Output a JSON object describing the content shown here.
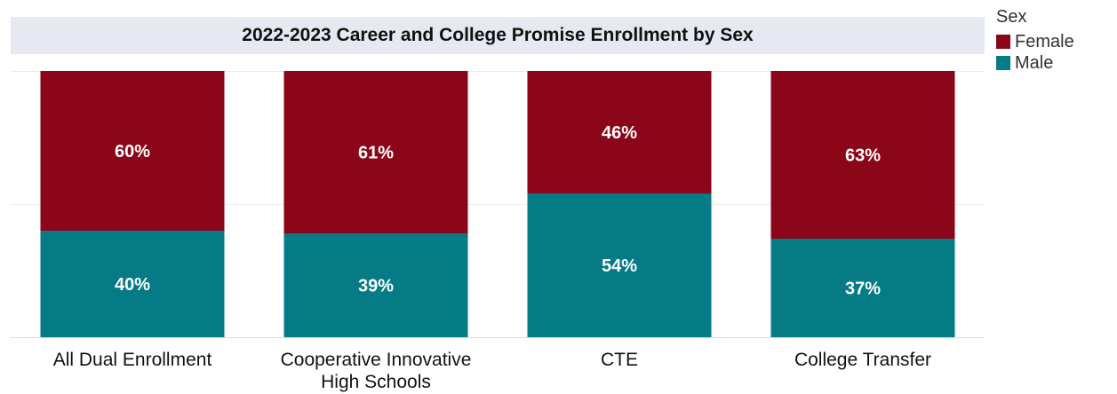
{
  "chart_data": {
    "type": "bar",
    "stacked": true,
    "title": "2022-2023 Career and College Promise Enrollment by Sex",
    "categories": [
      "All Dual Enrollment",
      "Cooperative Innovative High Schools",
      "CTE",
      "College Transfer"
    ],
    "category_lines": [
      [
        "All Dual Enrollment"
      ],
      [
        "Cooperative Innovative",
        "High Schools"
      ],
      [
        "CTE"
      ],
      [
        "College Transfer"
      ]
    ],
    "series": [
      {
        "name": "Male",
        "color": "#057b85",
        "values": [
          40,
          39,
          54,
          37
        ],
        "labels": [
          "40%",
          "39%",
          "54%",
          "37%"
        ]
      },
      {
        "name": "Female",
        "color": "#8b0618",
        "values": [
          60,
          61,
          46,
          63
        ],
        "labels": [
          "60%",
          "61%",
          "46%",
          "63%"
        ]
      }
    ],
    "ylim": [
      0,
      100
    ],
    "grid": true,
    "legend": {
      "title": "Sex",
      "position": "top-right",
      "order": [
        "Female",
        "Male"
      ]
    }
  }
}
